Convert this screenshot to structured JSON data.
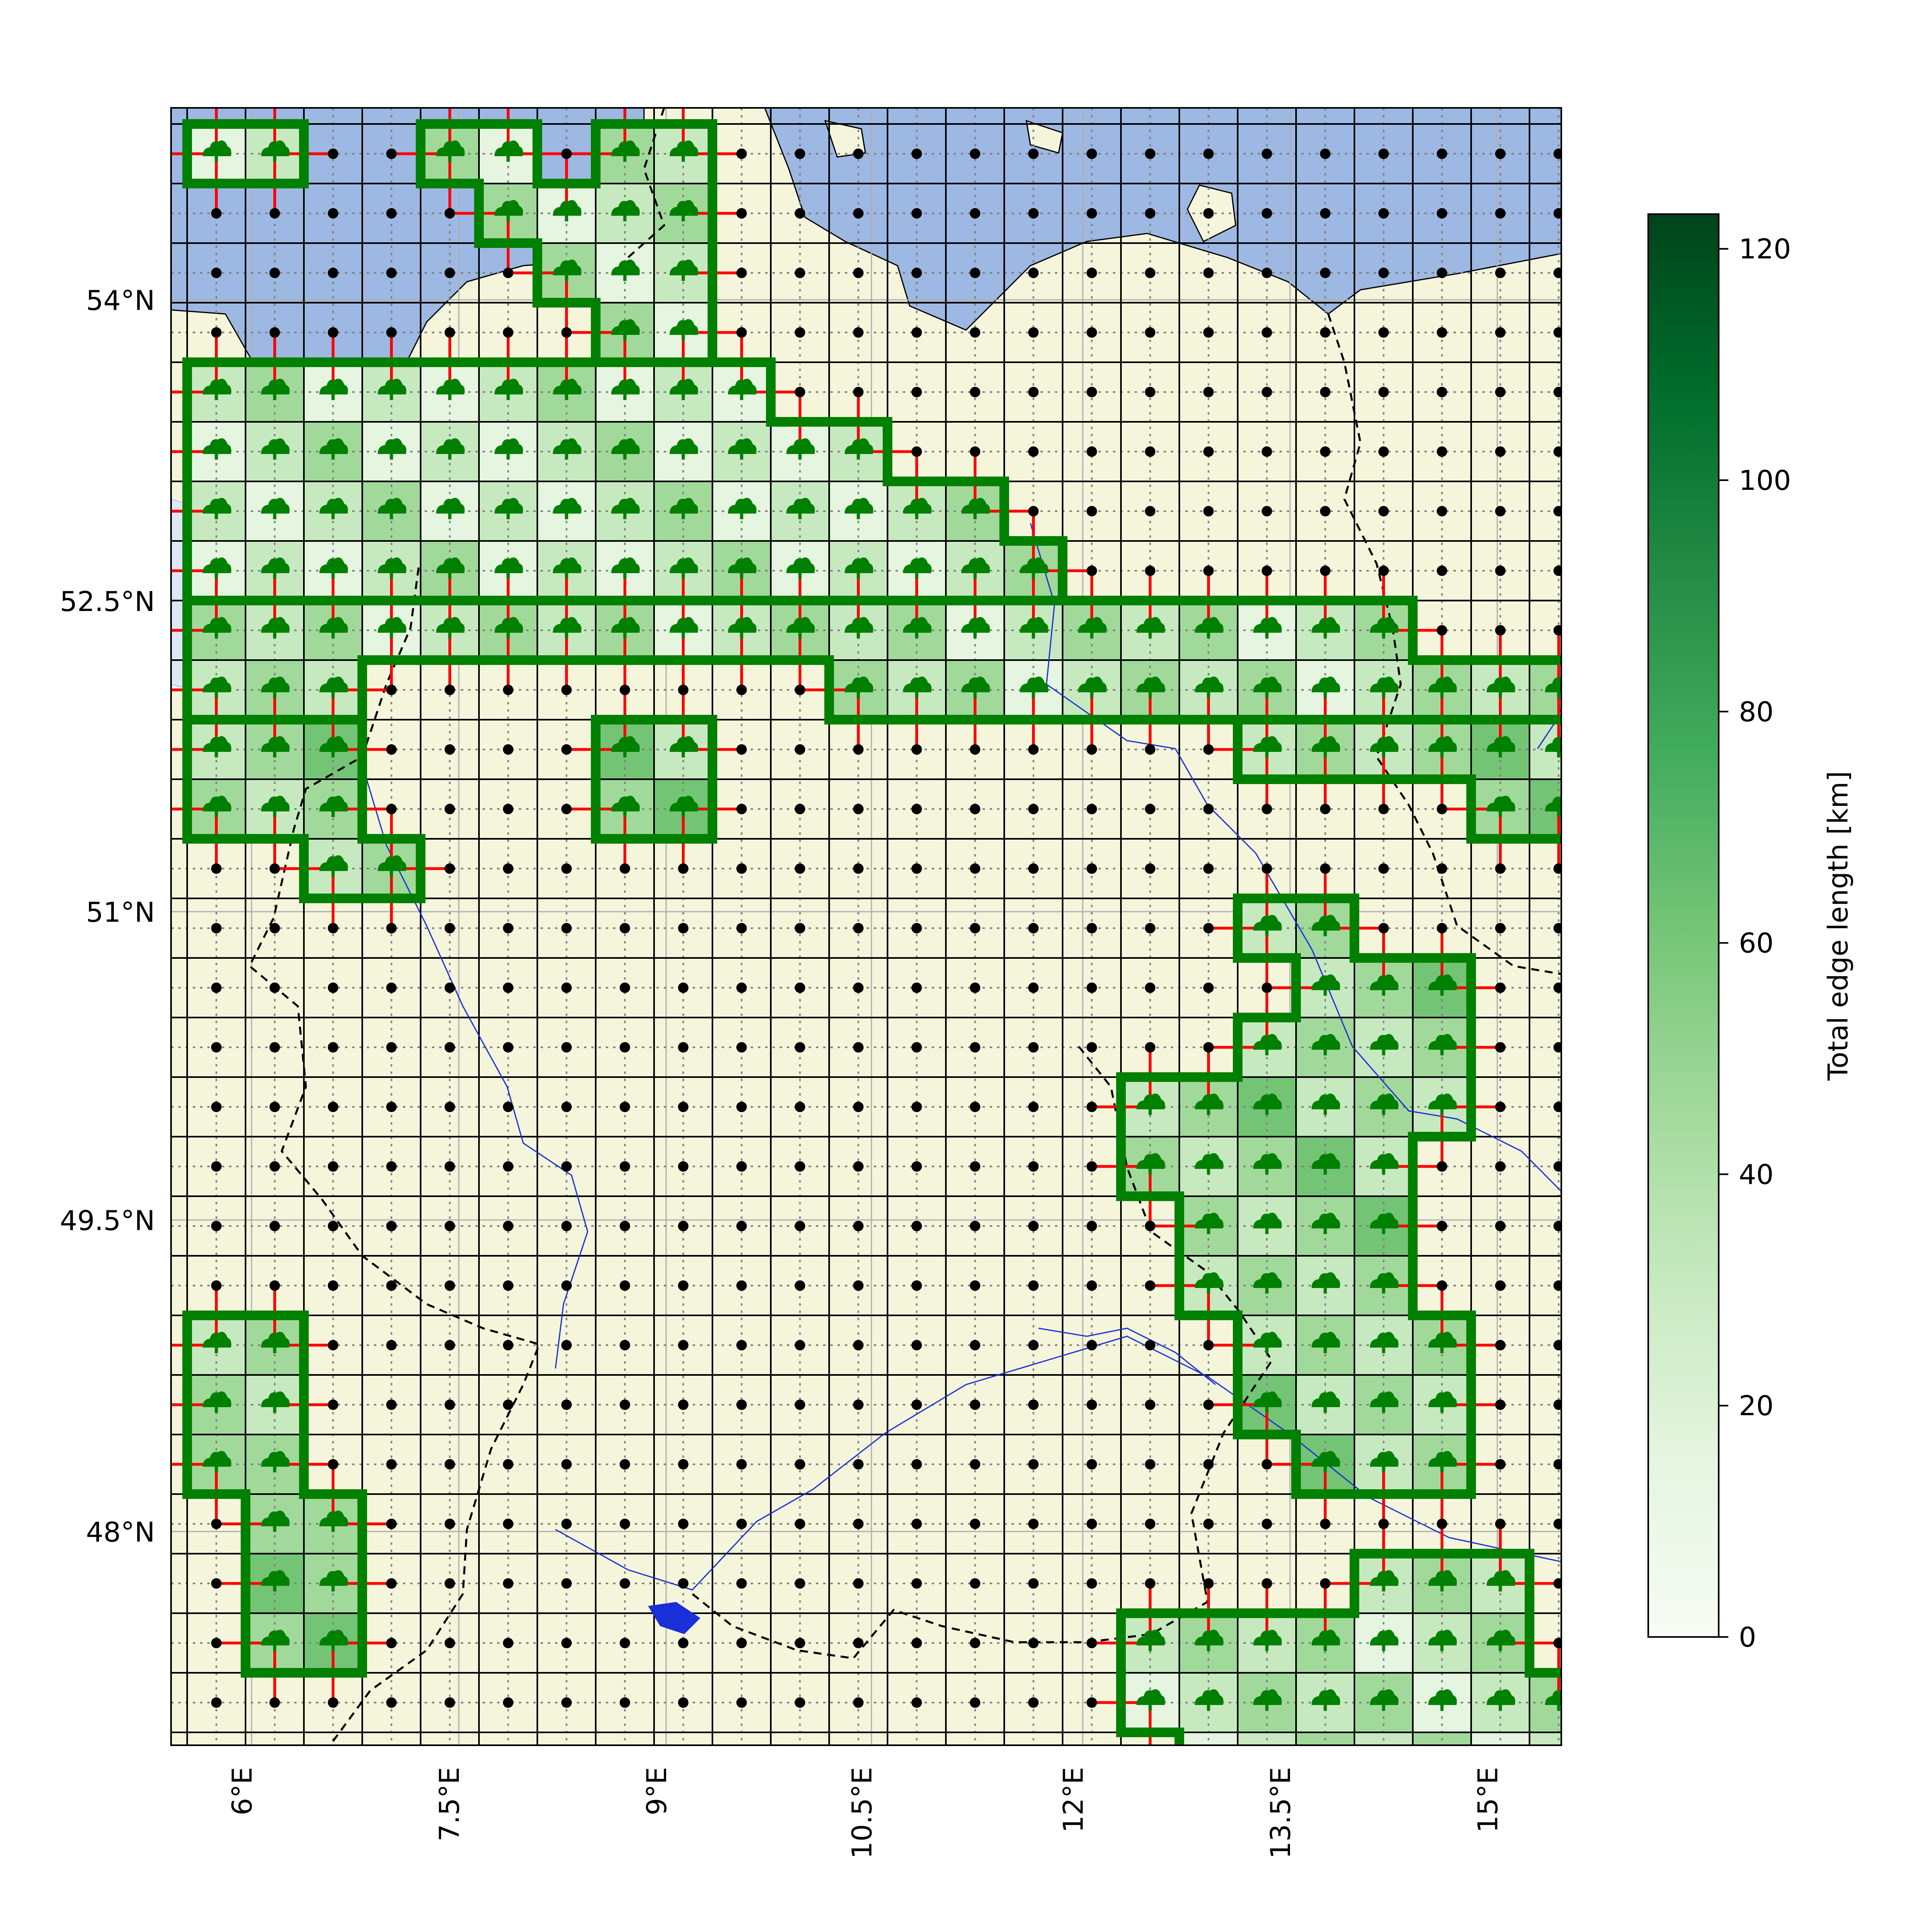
{
  "map": {
    "land_color": "#f5f5dc",
    "sea_color": "#9db8e2",
    "cell_edge_color": "#000000",
    "grid_line_color": "#b0b0b0",
    "dual_edge_color": "#808080",
    "highlight_edge_color": "#ff0000",
    "boundary_color": "#008000",
    "marker_color": "#000000",
    "forest_icon": "tree-cloud-icon",
    "lon_labels": [
      "6°E",
      "7.5°E",
      "9°E",
      "10.5°E",
      "12°E",
      "13.5°E",
      "15°E"
    ],
    "lat_labels": [
      "54°N",
      "52.5°N",
      "51°N",
      "49.5°N",
      "48°N"
    ]
  },
  "colorbar": {
    "label": "Total edge length [km]",
    "ticks": [
      "0",
      "20",
      "40",
      "60",
      "80",
      "100",
      "120"
    ],
    "vmin": 0,
    "vmax": 123,
    "colormap": "Greens",
    "color_low": "#f7fcf5",
    "color_high": "#00441b"
  }
}
